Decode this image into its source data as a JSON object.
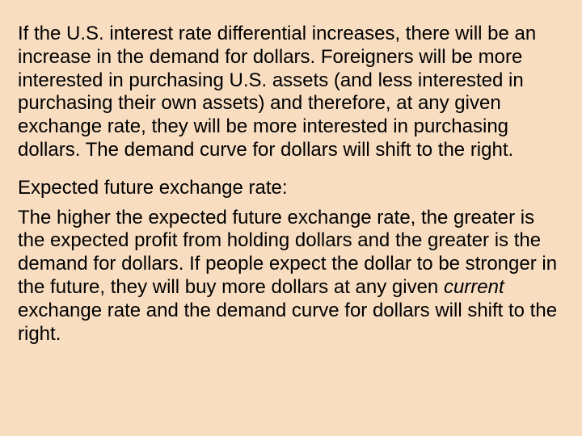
{
  "background_color": "#f8ddc1",
  "text_color": "#000000",
  "font_family": "Arial, Helvetica, sans-serif",
  "font_size_pt": 24,
  "line_height": 1.2,
  "paragraphs": {
    "p1": "If the U.S. interest rate differential increases, there will be an increase in the demand for dollars.  Foreigners will be more interested in purchasing U.S. assets (and less interested in purchasing their own assets) and therefore, at any given exchange rate, they will be more interested in purchasing dollars.  The demand curve for dollars will shift to the right.",
    "p2": "Expected future exchange rate:",
    "p3_pre": "The higher the expected future exchange rate, the greater is the expected profit from holding dollars and the greater is the demand for dollars.  If people expect the dollar to be stronger in the future, they will buy more dollars at any given ",
    "p3_ital": "current",
    "p3_post": " exchange rate and the demand curve for dollars will shift to the right."
  }
}
